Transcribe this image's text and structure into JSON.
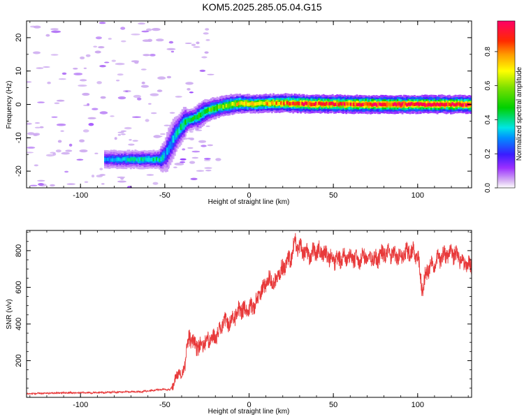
{
  "figure_title": "KOM5.2025.285.05.04.G15",
  "chart_data": [
    {
      "type": "heatmap",
      "title": "KOM5.2025.285.05.04.G15",
      "xlabel": "Height of straight line (km)",
      "ylabel": "Frequency (Hz)",
      "xlim": [
        -132,
        132
      ],
      "ylim": [
        -25,
        25
      ],
      "xticks": [
        -100,
        -50,
        0,
        50,
        100
      ],
      "yticks": [
        -20,
        -10,
        0,
        10,
        20
      ],
      "ridge": {
        "x": [
          -86,
          -75,
          -60,
          -53,
          -50,
          -47,
          -44,
          -41,
          -38,
          -35,
          -32,
          -29,
          -26,
          -23,
          -20,
          -15,
          -10,
          -5,
          0,
          10,
          20,
          30,
          50,
          70,
          90,
          110,
          132
        ],
        "y": [
          -16.5,
          -16.5,
          -16.5,
          -16.5,
          -15,
          -12,
          -9,
          -7,
          -5,
          -4.5,
          -4,
          -3,
          -2,
          -1.5,
          -1,
          -0.5,
          0,
          0.3,
          0.2,
          0.3,
          0.4,
          0.2,
          0.1,
          0,
          0,
          0,
          0
        ],
        "amplitude": [
          0.3,
          0.35,
          0.4,
          0.4,
          0.3,
          0.3,
          0.35,
          0.4,
          0.45,
          0.45,
          0.45,
          0.5,
          0.5,
          0.55,
          0.55,
          0.6,
          0.65,
          0.75,
          0.7,
          0.75,
          0.8,
          0.9,
          0.9,
          0.95,
          0.95,
          0.95,
          0.9
        ]
      },
      "colorbar": {
        "label": "Normalized spectral amplitude",
        "range": [
          0,
          0.98
        ],
        "ticks": [
          0.0,
          0.2,
          0.4,
          0.6,
          0.8
        ],
        "tick_labels": [
          "0.0",
          "0.2",
          "0.4",
          "0.6",
          "0.8"
        ]
      }
    },
    {
      "type": "line",
      "xlabel": "Height of straight line (km)",
      "ylabel": "SNR (v/v)",
      "xlim": [
        -132,
        132
      ],
      "ylim": [
        0,
        910
      ],
      "xticks": [
        -100,
        -50,
        0,
        50,
        100
      ],
      "yticks": [
        200,
        400,
        600,
        800
      ],
      "series": [
        {
          "name": "SNR",
          "color": "#e8393a",
          "x": [
            -132,
            -120,
            -110,
            -100,
            -90,
            -80,
            -70,
            -65,
            -60,
            -55,
            -50,
            -47,
            -45,
            -43,
            -41,
            -40,
            -38,
            -36,
            -34,
            -32,
            -30,
            -27,
            -25,
            -22,
            -20,
            -17,
            -15,
            -12,
            -10,
            -7,
            -5,
            -3,
            0,
            3,
            5,
            8,
            10,
            13,
            15,
            18,
            20,
            22,
            25,
            27,
            30,
            33,
            36,
            40,
            45,
            50,
            55,
            60,
            65,
            70,
            75,
            80,
            85,
            90,
            95,
            100,
            103,
            105,
            110,
            115,
            120,
            125,
            130,
            132
          ],
          "y": [
            20,
            22,
            25,
            25,
            26,
            28,
            30,
            30,
            35,
            40,
            45,
            40,
            70,
            110,
            150,
            100,
            200,
            310,
            330,
            270,
            280,
            300,
            310,
            320,
            330,
            380,
            410,
            400,
            430,
            460,
            480,
            470,
            480,
            500,
            540,
            580,
            620,
            640,
            610,
            680,
            700,
            740,
            760,
            850,
            810,
            790,
            770,
            800,
            780,
            750,
            760,
            770,
            740,
            780,
            750,
            790,
            780,
            760,
            800,
            780,
            580,
            680,
            740,
            770,
            790,
            760,
            710,
            730
          ]
        }
      ]
    }
  ]
}
